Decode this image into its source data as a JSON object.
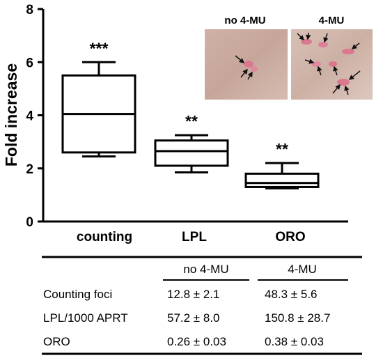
{
  "chart_data": {
    "type": "box",
    "ylabel": "Fold increase",
    "ylim": [
      0,
      8
    ],
    "yticks": [
      "0",
      "2",
      "4",
      "6",
      "8"
    ],
    "categories": [
      "counting",
      "LPL",
      "ORO"
    ],
    "boxes": [
      {
        "category": "counting",
        "min": 2.45,
        "q1": 2.6,
        "median": 4.05,
        "q3": 5.5,
        "max": 6.0,
        "significance": "***"
      },
      {
        "category": "LPL",
        "min": 1.85,
        "q1": 2.1,
        "median": 2.65,
        "q3": 3.05,
        "max": 3.25,
        "significance": "**"
      },
      {
        "category": "ORO",
        "min": 1.25,
        "q1": 1.3,
        "median": 1.45,
        "q3": 1.8,
        "max": 2.2,
        "significance": "**"
      }
    ]
  },
  "photos": [
    {
      "title": "no 4-MU"
    },
    {
      "title": "4-MU"
    }
  ],
  "table": {
    "columns": [
      "",
      "no 4-MU",
      "4-MU"
    ],
    "rows": [
      [
        "Counting foci",
        "12.8 ± 2.1",
        "48.3 ± 5.6"
      ],
      [
        "LPL/1000 APRT",
        "57.2 ± 8.0",
        "150.8 ± 28.7"
      ],
      [
        "ORO",
        "0.26 ± 0.03",
        "0.38 ± 0.03"
      ]
    ]
  },
  "colors": {
    "ink": "#000000",
    "photo_background": "#c9a99d",
    "cell_stain": "#d9788f",
    "arrow": "#111111"
  }
}
